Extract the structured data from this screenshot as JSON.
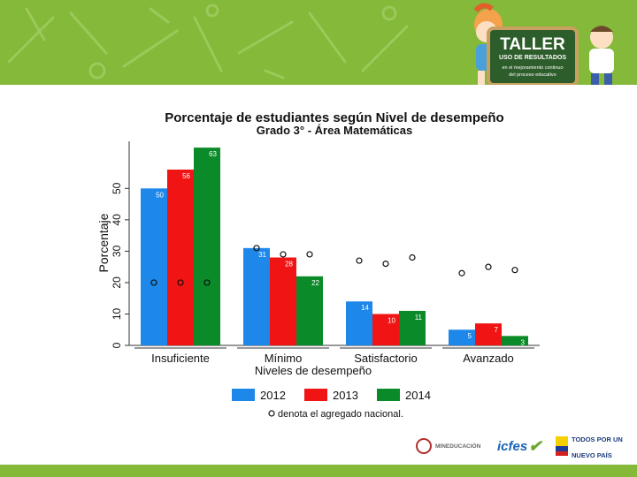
{
  "slide": {
    "badge": {
      "title": "TALLER",
      "subtitle": "USO DE RESULTADOS",
      "text_lines": [
        "en el mejoramiento continuo",
        "del proceso educativo"
      ]
    },
    "footer_logos": {
      "ministry": "MINEDUCACIÓN",
      "icfes": "icfes",
      "todos_line1": "TODOS POR UN",
      "todos_line2": "NUEVO PAÍS"
    },
    "colors": {
      "banner": "#84b93a",
      "badge_bg": "#2d5d2a"
    }
  },
  "chart_data": {
    "type": "bar",
    "title": "Porcentaje de estudiantes según Nivel de desempeño",
    "subtitle": "Grado 3° - Área  Matemáticas",
    "xlabel": "Niveles de desempeño",
    "ylabel": "Porcentaje",
    "ylim": [
      0,
      65
    ],
    "yticks": [
      0,
      10,
      20,
      30,
      40,
      50
    ],
    "categories": [
      "Insuficiente",
      "Mínimo",
      "Satisfactorio",
      "Avanzado"
    ],
    "series": [
      {
        "name": "2012",
        "color": "#1e87ea",
        "values": [
          50,
          31,
          14,
          5
        ]
      },
      {
        "name": "2013",
        "color": "#f01414",
        "values": [
          56,
          28,
          10,
          7
        ]
      },
      {
        "name": "2014",
        "color": "#0a8a28",
        "values": [
          63,
          22,
          11,
          3
        ]
      }
    ],
    "national_markers": [
      [
        20,
        20,
        20
      ],
      [
        31,
        29,
        29
      ],
      [
        27,
        26,
        28
      ],
      [
        23,
        25,
        24
      ]
    ],
    "note": "denota el agregado nacional."
  }
}
